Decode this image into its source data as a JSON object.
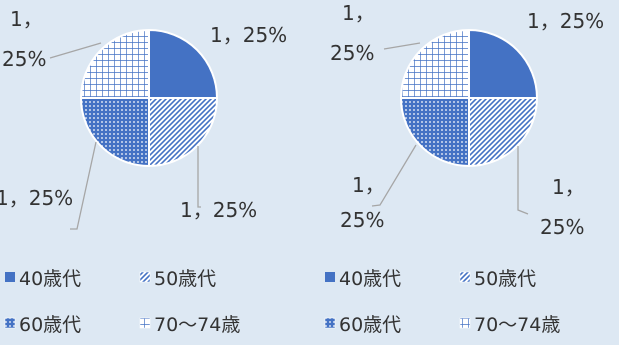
{
  "chart_data": [
    {
      "type": "pie",
      "categories": [
        "40歳代",
        "50歳代",
        "60歳代",
        "70〜74歳"
      ],
      "values": [
        1,
        1,
        1,
        1
      ],
      "percents": [
        25,
        25,
        25,
        25
      ],
      "data_labels": [
        {
          "line1": "1，25%",
          "line2": ""
        },
        {
          "line1": "1，25%",
          "line2": ""
        },
        {
          "line1": "1，25%",
          "line2": ""
        },
        {
          "line1": "1，",
          "line2": "25%"
        }
      ],
      "legend": [
        "40歳代",
        "50歳代",
        "60歳代",
        "70〜74歳"
      ],
      "legend_position": "bottom"
    },
    {
      "type": "pie",
      "categories": [
        "40歳代",
        "50歳代",
        "60歳代",
        "70〜74歳"
      ],
      "values": [
        1,
        1,
        1,
        1
      ],
      "percents": [
        25,
        25,
        25,
        25
      ],
      "data_labels": [
        {
          "line1": "1，25%",
          "line2": ""
        },
        {
          "line1": "1，",
          "line2": "25%"
        },
        {
          "line1": "1，",
          "line2": "25%"
        },
        {
          "line1": "1，",
          "line2": "25%"
        }
      ],
      "legend": [
        "40歳代",
        "50歳代",
        "60歳代",
        "70〜74歳"
      ],
      "legend_position": "bottom"
    }
  ],
  "colors": {
    "series": "#4472c4",
    "background": "#dde8f3",
    "leader_line": "#a6a6a6",
    "text": "#333333"
  },
  "patterns": [
    "solid",
    "diagonal-stripes",
    "dots",
    "grid"
  ]
}
